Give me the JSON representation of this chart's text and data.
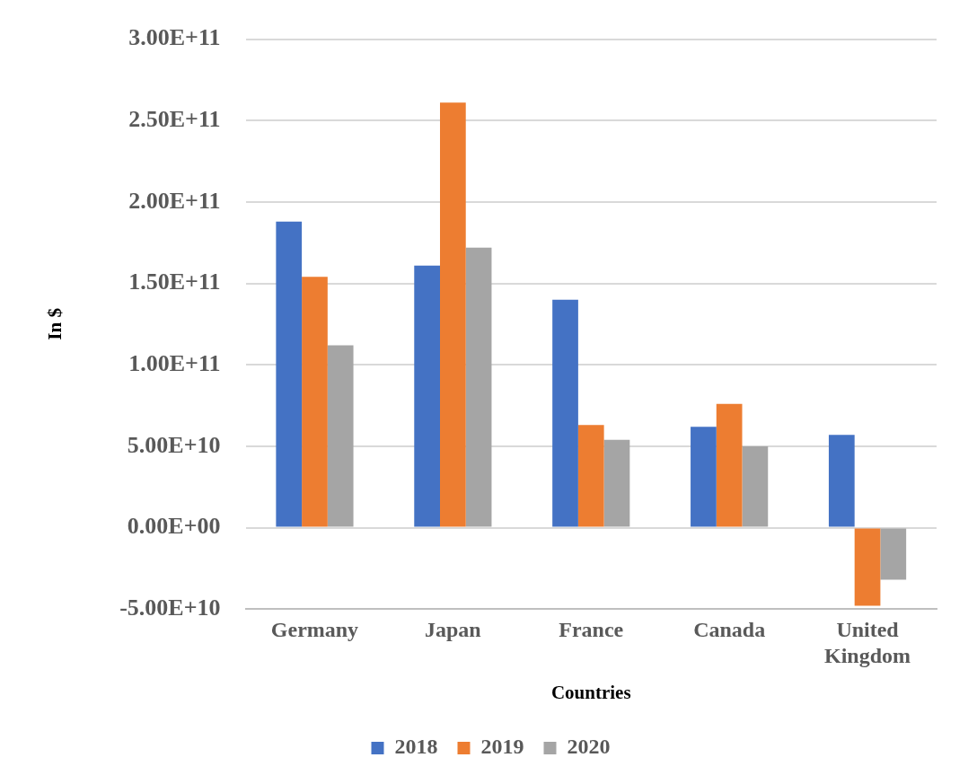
{
  "chart_data": {
    "type": "bar",
    "xlabel": "Countries",
    "ylabel": "In $",
    "categories": [
      "Germany",
      "Japan",
      "France",
      "Canada",
      "United Kingdom"
    ],
    "series": [
      {
        "name": "2018",
        "color": "#4472c4",
        "values": [
          188000000000.0,
          161000000000.0,
          140000000000.0,
          62000000000.0,
          57000000000.0
        ]
      },
      {
        "name": "2019",
        "color": "#ed7d31",
        "values": [
          154000000000.0,
          261000000000.0,
          63000000000.0,
          76000000000.0,
          -48000000000.0
        ]
      },
      {
        "name": "2020",
        "color": "#a5a5a5",
        "values": [
          112000000000.0,
          172000000000.0,
          54000000000.0,
          50000000000.0,
          -32000000000.0
        ]
      }
    ],
    "ylim": [
      -50000000000.0,
      300000000000.0
    ],
    "yticks": [
      {
        "value": -50000000000.0,
        "label": "-5.00E+10"
      },
      {
        "value": 0,
        "label": "0.00E+00"
      },
      {
        "value": 50000000000.0,
        "label": "5.00E+10"
      },
      {
        "value": 100000000000.0,
        "label": "1.00E+11"
      },
      {
        "value": 150000000000.0,
        "label": "1.50E+11"
      },
      {
        "value": 200000000000.0,
        "label": "2.00E+11"
      },
      {
        "value": 250000000000.0,
        "label": "2.50E+11"
      },
      {
        "value": 300000000000.0,
        "label": "3.00E+11"
      }
    ],
    "grid": "y",
    "legend": "bottom"
  }
}
